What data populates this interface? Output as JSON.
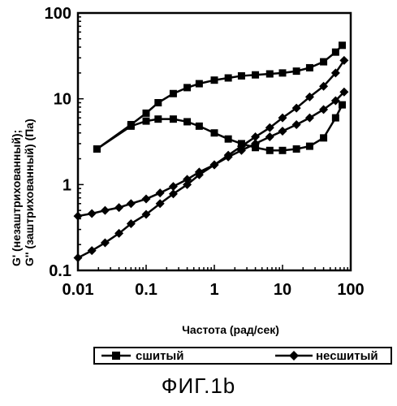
{
  "chart_data": {
    "type": "line",
    "title": "",
    "xlabel": "Частота (рад/сек)",
    "ylabel_lines": [
      "G'  (незаштрихованный);",
      "G''  (заштрихованный)  (Па)"
    ],
    "x_scale": "log",
    "y_scale": "log",
    "xlim": [
      0.01,
      100
    ],
    "ylim": [
      0.1,
      100
    ],
    "x_ticks": [
      0.01,
      0.1,
      1,
      10,
      100
    ],
    "x_tick_labels": [
      "0.01",
      "0.1",
      "1",
      "10",
      "100"
    ],
    "y_ticks": [
      0.1,
      1,
      10,
      100
    ],
    "y_tick_labels": [
      "0.1",
      "1",
      "10",
      "100"
    ],
    "grid": false,
    "legend_position": "bottom",
    "series": [
      {
        "name": "сшитый",
        "marker": "square",
        "curves": [
          {
            "kind": "G'",
            "x": [
              0.019,
              0.06,
              0.1,
              0.15,
              0.25,
              0.4,
              0.6,
              1.0,
              1.6,
              2.5,
              4.0,
              6.5,
              10,
              16,
              25,
              40,
              60,
              75
            ],
            "y": [
              2.6,
              5.0,
              6.8,
              9.0,
              11.5,
              13.5,
              15.0,
              16.5,
              17.5,
              18.5,
              19.0,
              19.5,
              20.0,
              21.0,
              23.0,
              27.0,
              35.0,
              42.0
            ]
          },
          {
            "kind": "G''",
            "x": [
              0.019,
              0.06,
              0.1,
              0.15,
              0.25,
              0.4,
              0.6,
              1.0,
              1.6,
              2.5,
              4.0,
              6.5,
              10,
              16,
              25,
              40,
              60,
              75
            ],
            "y": [
              2.6,
              4.8,
              5.5,
              5.8,
              5.8,
              5.4,
              4.8,
              4.0,
              3.4,
              3.0,
              2.7,
              2.5,
              2.5,
              2.6,
              2.8,
              3.5,
              6.0,
              8.5
            ]
          }
        ]
      },
      {
        "name": "несшитый",
        "marker": "diamond",
        "curves": [
          {
            "kind": "G'",
            "x": [
              0.01,
              0.016,
              0.025,
              0.04,
              0.06,
              0.1,
              0.16,
              0.25,
              0.4,
              0.6,
              1.0,
              1.6,
              2.5,
              4.0,
              6.5,
              10,
              16,
              25,
              40,
              60,
              80
            ],
            "y": [
              0.14,
              0.17,
              0.21,
              0.27,
              0.35,
              0.45,
              0.6,
              0.78,
              1.0,
              1.3,
              1.7,
              2.2,
              2.8,
              3.6,
              4.6,
              6.0,
              7.8,
              10.5,
              14.0,
              20.0,
              28.0
            ]
          },
          {
            "kind": "G''",
            "x": [
              0.01,
              0.016,
              0.025,
              0.04,
              0.06,
              0.1,
              0.16,
              0.25,
              0.4,
              0.6,
              1.0,
              1.6,
              2.5,
              4.0,
              6.5,
              10,
              16,
              25,
              40,
              60,
              80
            ],
            "y": [
              0.43,
              0.46,
              0.5,
              0.54,
              0.6,
              0.68,
              0.8,
              0.95,
              1.15,
              1.4,
              1.7,
              2.1,
              2.5,
              3.0,
              3.6,
              4.2,
              5.0,
              6.0,
              7.5,
              9.5,
              12.0
            ]
          }
        ]
      }
    ]
  },
  "figure_caption": "ФИГ.1b"
}
